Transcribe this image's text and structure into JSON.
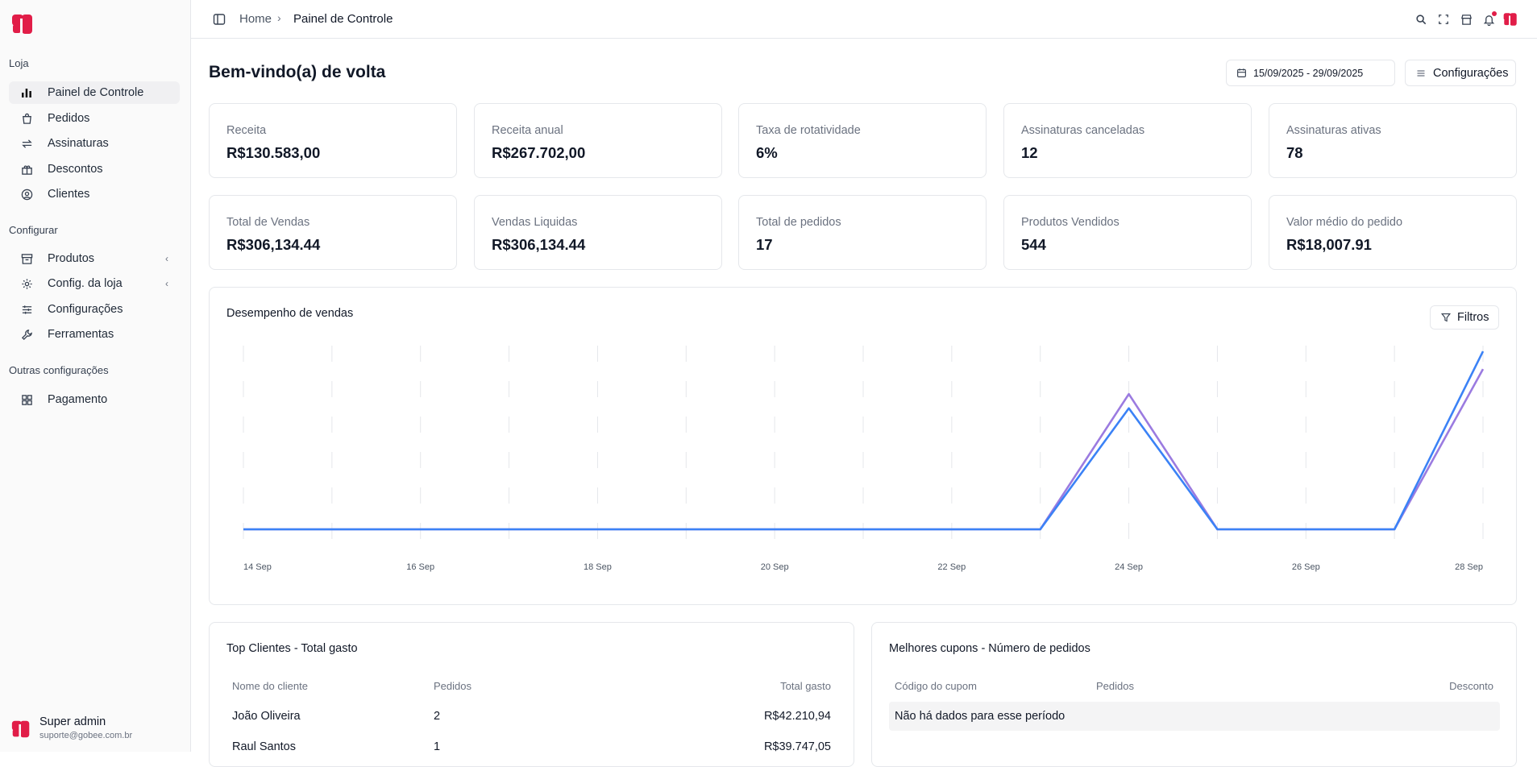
{
  "sidebar": {
    "sections": [
      {
        "title": "Loja",
        "items": [
          {
            "label": "Painel de Controle",
            "icon": "bar-chart-icon",
            "active": true
          },
          {
            "label": "Pedidos",
            "icon": "shopping-bag-icon"
          },
          {
            "label": "Assinaturas",
            "icon": "repeat-icon"
          },
          {
            "label": "Descontos",
            "icon": "gift-icon"
          },
          {
            "label": "Clientes",
            "icon": "user-circle-icon"
          }
        ]
      },
      {
        "title": "Configurar",
        "items": [
          {
            "label": "Produtos",
            "icon": "archive-icon",
            "chevron": "‹"
          },
          {
            "label": "Config. da loja",
            "icon": "gear-icon",
            "chevron": "‹"
          },
          {
            "label": "Configurações",
            "icon": "sliders-icon"
          },
          {
            "label": "Ferramentas",
            "icon": "wrench-icon"
          }
        ]
      },
      {
        "title": "Outras configurações",
        "items": [
          {
            "label": "Pagamento",
            "icon": "grid-icon"
          }
        ]
      }
    ],
    "user": {
      "name": "Super admin",
      "email": "suporte@gobee.com.br"
    }
  },
  "topbar": {
    "breadcrumb": {
      "home": "Home",
      "separator": "›",
      "current": "Painel de Controle"
    },
    "icons": [
      "search-icon",
      "fullscreen-icon",
      "store-icon",
      "bell-icon",
      "brand-logo-icon"
    ]
  },
  "main": {
    "title": "Bem-vindo(a) de volta",
    "date_range": "15/09/2025 - 29/09/2025",
    "settings_label": "Configurações",
    "cards": [
      {
        "label": "Receita",
        "value": "R$130.583,00"
      },
      {
        "label": "Receita anual",
        "value": "R$267.702,00"
      },
      {
        "label": "Taxa de rotatividade",
        "value": "6%"
      },
      {
        "label": "Assinaturas canceladas",
        "value": "12"
      },
      {
        "label": "Assinaturas ativas",
        "value": "78"
      },
      {
        "label": "Total de Vendas",
        "value": "R$306,134.44"
      },
      {
        "label": "Vendas Liquidas",
        "value": "R$306,134.44"
      },
      {
        "label": "Total de pedidos",
        "value": "17"
      },
      {
        "label": "Produtos Vendidos",
        "value": "544"
      },
      {
        "label": "Valor médio do pedido",
        "value": "R$18,007.91"
      }
    ],
    "sales": {
      "title": "Desempenho de vendas",
      "filter_label": "Filtros"
    },
    "top_clients": {
      "title": "Top Clientes - Total gasto",
      "columns": [
        "Nome do cliente",
        "Pedidos",
        "Total gasto"
      ],
      "rows": [
        [
          "João Oliveira",
          "2",
          "R$42.210,94"
        ],
        [
          "Raul Santos",
          "1",
          "R$39.747,05"
        ]
      ]
    },
    "top_coupons": {
      "title": "Melhores cupons - Número de pedidos",
      "columns": [
        "Código do cupom",
        "Pedidos",
        "Desconto"
      ],
      "empty_message": "Não há dados para esse período"
    }
  },
  "colors": {
    "brand": "#e11d48",
    "line_blue": "#3b82f6",
    "line_purple": "#9b7be0"
  },
  "chart_data": {
    "type": "line",
    "title": "Desempenho de vendas",
    "x": [
      "14 Sep",
      "15 Sep",
      "16 Sep",
      "17 Sep",
      "18 Sep",
      "19 Sep",
      "20 Sep",
      "21 Sep",
      "22 Sep",
      "23 Sep",
      "24 Sep",
      "25 Sep",
      "26 Sep",
      "27 Sep",
      "28 Sep"
    ],
    "tick_labels": [
      "14 Sep",
      "16 Sep",
      "18 Sep",
      "20 Sep",
      "22 Sep",
      "24 Sep",
      "26 Sep",
      "28 Sep"
    ],
    "series": [
      {
        "values": [
          0,
          0,
          0,
          0,
          0,
          0,
          0,
          0,
          0,
          0,
          0.76,
          0,
          0,
          0,
          0.9
        ],
        "color": "#9b7be0"
      },
      {
        "values": [
          0,
          0,
          0,
          0,
          0,
          0,
          0,
          0,
          0,
          0,
          0.68,
          0,
          0,
          0,
          1.0
        ],
        "color": "#3b82f6"
      }
    ],
    "ylim": [
      0,
      1.05
    ],
    "grid": true,
    "legend": "none"
  }
}
